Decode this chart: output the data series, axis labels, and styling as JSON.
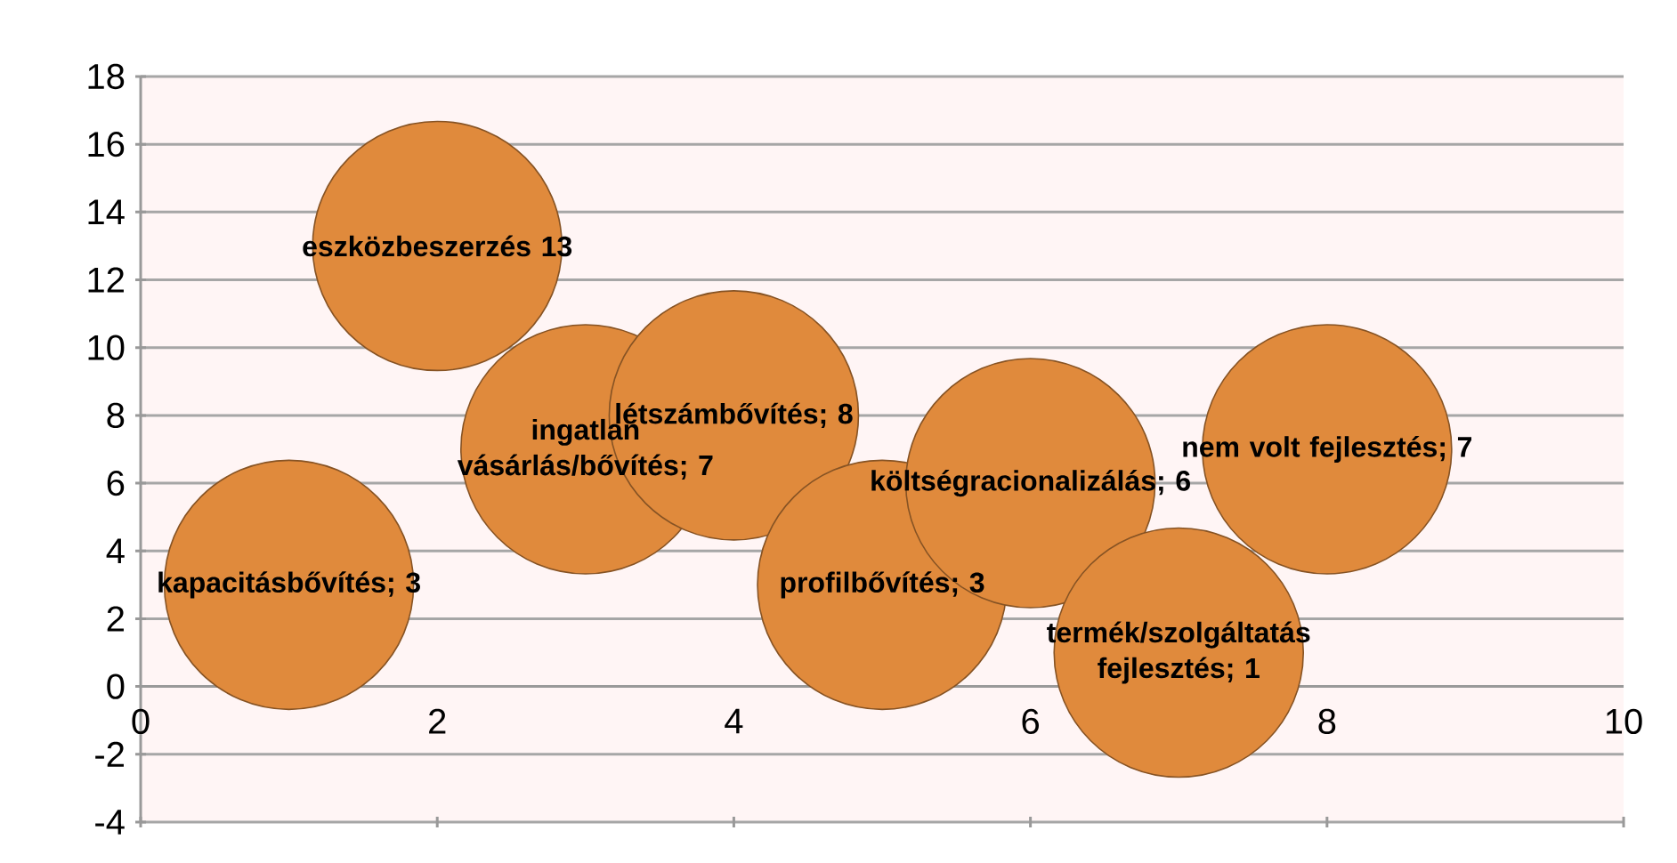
{
  "chart_data": {
    "type": "bubble",
    "x": [
      1,
      2,
      3,
      4,
      5,
      6,
      7,
      8
    ],
    "values": [
      3,
      13,
      7,
      8,
      3,
      6,
      1,
      7
    ],
    "sizes": [
      1,
      1,
      1,
      1,
      1,
      1,
      1,
      1
    ],
    "color": "#e08a3c",
    "xlim": [
      0,
      10
    ],
    "ylim": [
      -4,
      18
    ],
    "xticks": [
      0,
      2,
      4,
      6,
      8,
      10
    ],
    "yticks": [
      -4,
      -2,
      0,
      2,
      4,
      6,
      8,
      10,
      12,
      14,
      16,
      18
    ],
    "grid": "y",
    "annotations": [
      {
        "text": "kapacitásbővítés; 3",
        "x": 1,
        "y": 3
      },
      {
        "text": "eszközbeszerzés 13",
        "x": 2,
        "y": 13
      },
      {
        "text": "ingatlan vásárlás/bővítés; 7",
        "x": 3,
        "y": 7
      },
      {
        "text": "létszámbővítés; 8",
        "x": 4,
        "y": 8
      },
      {
        "text": "profilbővítés; 3",
        "x": 5,
        "y": 3
      },
      {
        "text": "költségracionalizálás; 6",
        "x": 6,
        "y": 6
      },
      {
        "text": "termék/szolgáltatás fejlesztés; 1",
        "x": 7,
        "y": 1
      },
      {
        "text": "nem volt fejlesztés; 7",
        "x": 8,
        "y": 7
      }
    ]
  }
}
